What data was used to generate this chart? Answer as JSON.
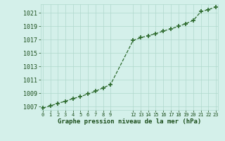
{
  "x": [
    0,
    1,
    2,
    3,
    4,
    5,
    6,
    7,
    8,
    9,
    12,
    13,
    14,
    15,
    16,
    17,
    18,
    19,
    20,
    21,
    22,
    23
  ],
  "y": [
    1006.8,
    1007.1,
    1007.5,
    1007.8,
    1008.2,
    1008.5,
    1008.9,
    1009.3,
    1009.8,
    1010.3,
    1016.9,
    1017.3,
    1017.6,
    1017.9,
    1018.3,
    1018.6,
    1019.0,
    1019.4,
    1019.9,
    1021.2,
    1021.5,
    1021.9
  ],
  "ylim_min": 1006.5,
  "ylim_max": 1022.3,
  "yticks": [
    1007,
    1009,
    1011,
    1013,
    1015,
    1017,
    1019,
    1021
  ],
  "xlim_min": -0.3,
  "xlim_max": 23.3,
  "xlabel": "Graphe pression niveau de la mer (hPa)",
  "line_color": "#2d6a2d",
  "marker": "+",
  "bg_color": "#d4f0ea",
  "grid_color": "#b0d8cc",
  "tick_color": "#1a4d1a",
  "label_color": "#1a4d1a"
}
